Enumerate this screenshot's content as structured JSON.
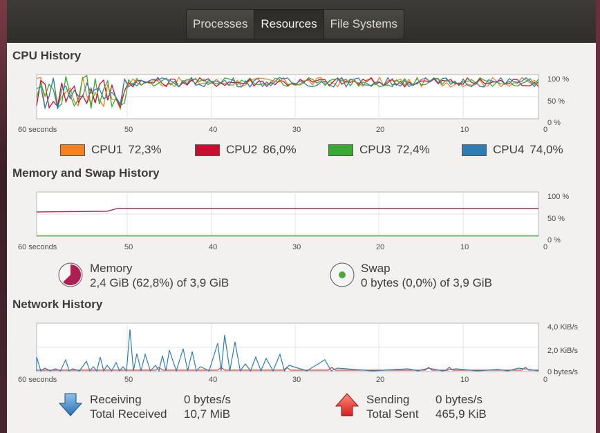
{
  "tabs": [
    {
      "label": "Processes",
      "active": false
    },
    {
      "label": "Resources",
      "active": true
    },
    {
      "label": "File Systems",
      "active": false
    }
  ],
  "cpu": {
    "title": "CPU History",
    "x_ticks": [
      "60 seconds",
      "50",
      "40",
      "30",
      "20",
      "10",
      "0"
    ],
    "y_ticks": [
      "100 %",
      "50 %",
      "0 %"
    ],
    "legend": [
      {
        "name": "CPU1",
        "value": "72,3%",
        "color": "#f5821f"
      },
      {
        "name": "CPU2",
        "value": "86,0%",
        "color": "#cc0c2f"
      },
      {
        "name": "CPU3",
        "value": "72,4%",
        "color": "#3aa932"
      },
      {
        "name": "CPU4",
        "value": "74,0%",
        "color": "#2d7db3"
      }
    ]
  },
  "memory": {
    "title": "Memory and Swap History",
    "x_ticks": [
      "60 seconds",
      "50",
      "40",
      "30",
      "20",
      "10",
      "0"
    ],
    "y_ticks": [
      "100 %",
      "50 %",
      "0 %"
    ],
    "memory_label": "Memory",
    "memory_value": "2,4 GiB (62,8%) of 3,9 GiB",
    "memory_fraction": 0.628,
    "memory_color": "#ae1e52",
    "swap_label": "Swap",
    "swap_value": "0 bytes (0,0%) of 3,9 GiB",
    "swap_fraction": 0.0,
    "swap_color": "#4ea93a"
  },
  "network": {
    "title": "Network History",
    "x_ticks": [
      "60 seconds",
      "50",
      "40",
      "30",
      "20",
      "10",
      "0"
    ],
    "y_ticks": [
      "4,0 KiB/s",
      "2,0 KiB/s",
      "0 bytes/s"
    ],
    "receiving_label": "Receiving",
    "receiving_value": "0 bytes/s",
    "total_received_label": "Total Received",
    "total_received_value": "10,7 MiB",
    "sending_label": "Sending",
    "sending_value": "0 bytes/s",
    "total_sent_label": "Total Sent",
    "total_sent_value": "465,9 KiB",
    "receive_color": "#2d7db3",
    "send_color": "#e03a2a"
  }
}
